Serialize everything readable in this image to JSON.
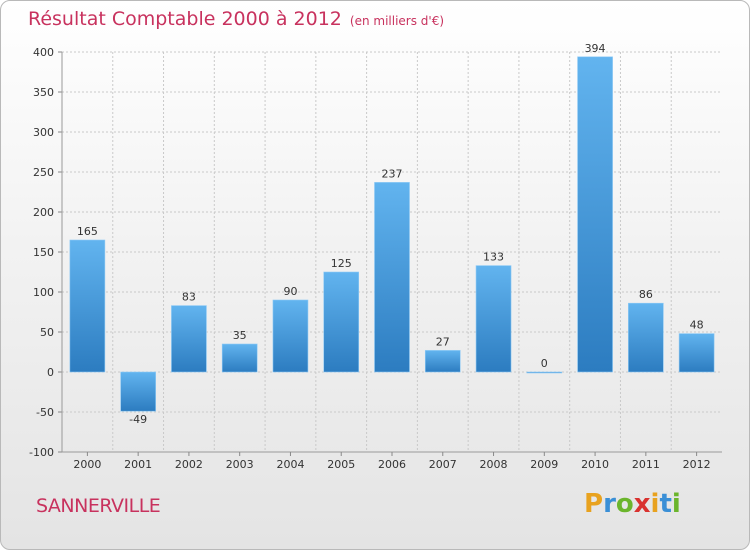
{
  "title": "Résultat Comptable 2000 à 2012",
  "subtitle": "(en milliers d'€)",
  "place": "SANNERVILLE",
  "logo": {
    "letters": [
      "P",
      "r",
      "o",
      "x",
      "i",
      "t",
      "i"
    ],
    "colors": [
      "#e8a21f",
      "#3a8fd6",
      "#6bb52c",
      "#d9322f",
      "#e8a21f",
      "#3a8fd6",
      "#6bb52c"
    ]
  },
  "colors": {
    "accent": "#c8325e",
    "bar_top": "#62b4ef",
    "bar_bottom": "#2c7cc0"
  },
  "chart_data": {
    "type": "bar",
    "categories": [
      "2000",
      "2001",
      "2002",
      "2003",
      "2004",
      "2005",
      "2006",
      "2007",
      "2008",
      "2009",
      "2010",
      "2011",
      "2012"
    ],
    "values": [
      165,
      -49,
      83,
      35,
      90,
      125,
      237,
      27,
      133,
      0,
      394,
      86,
      48
    ],
    "value_labels": [
      "165",
      "-49",
      "83",
      "35",
      "90",
      "125",
      "237",
      "27",
      "133",
      "0",
      "394",
      "86",
      "48"
    ],
    "yticks": [
      "400",
      "350",
      "300",
      "250",
      "200",
      "150",
      "100",
      "50",
      "0",
      "-50",
      "-100"
    ],
    "ylim": [
      -100,
      400
    ],
    "grid": true
  }
}
